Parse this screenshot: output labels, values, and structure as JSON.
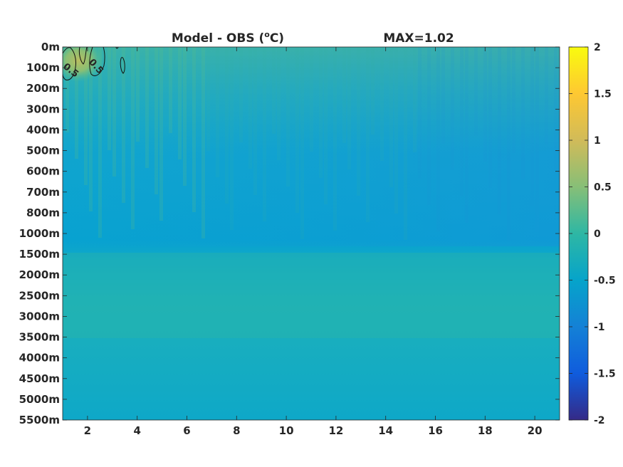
{
  "chart_data": {
    "type": "heatmap",
    "title": "Model - OBS (°C)",
    "title_main": "Model - OBS (",
    "title_sup": "o",
    "title_tail": "C)",
    "max_label": "MAX=1.02",
    "x_ticks": [
      2,
      4,
      6,
      8,
      10,
      12,
      14,
      16,
      18,
      20
    ],
    "x_range": [
      1,
      21
    ],
    "y_tick_labels": [
      "0m",
      "100m",
      "200m",
      "300m",
      "400m",
      "500m",
      "600m",
      "700m",
      "800m",
      "1000m",
      "1500m",
      "2000m",
      "2500m",
      "3000m",
      "3500m",
      "4000m",
      "4500m",
      "5000m",
      "5500m"
    ],
    "y_reversed": true,
    "colorbar": {
      "colormap": "parula",
      "range": [
        -2,
        2
      ],
      "tick_labels": [
        "2",
        "1.5",
        "1",
        "0.5",
        "0",
        "-0.5",
        "-1",
        "-1.5",
        "-2"
      ],
      "tick_values": [
        2,
        1.5,
        1,
        0.5,
        0,
        -0.5,
        -1,
        -1.5,
        -2
      ]
    },
    "contour": {
      "level": 0.5,
      "labels": [
        "0.5",
        "0.5"
      ]
    },
    "max_value": 1.02,
    "grid": false
  }
}
